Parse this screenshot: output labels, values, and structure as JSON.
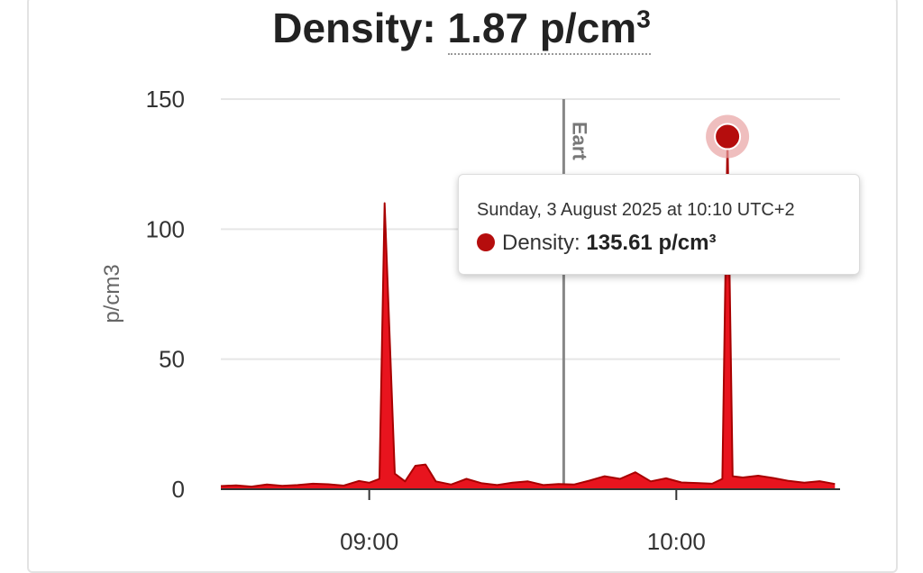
{
  "header": {
    "label": "Density:",
    "value": "1.87 p/cm",
    "superscript": "3"
  },
  "tooltip": {
    "date": "Sunday, 3 August 2025 at 10:10 UTC+2",
    "series_label": "Density:",
    "value": "135.61 p/cm³"
  },
  "plotline_label": "Eart",
  "colors": {
    "series": "#e8141e",
    "series_line": "#a80000",
    "marker": "#b50d0d",
    "plotline": "#888888",
    "grid": "#e6e6e6"
  },
  "chart_data": {
    "type": "area",
    "title": "Density: 1.87 p/cm³",
    "ylabel": "p/cm3",
    "xlabel": "",
    "ylim": [
      0,
      150
    ],
    "xlim": [
      "08:31",
      "10:32"
    ],
    "yticks": [
      0,
      50,
      100,
      150
    ],
    "xticks": [
      "09:00",
      "10:00"
    ],
    "plotline": {
      "time": "09:38",
      "label": "Eart"
    },
    "highlight": {
      "time": "10:10",
      "value": 135.61
    },
    "series": [
      {
        "name": "Density",
        "x": [
          "08:31",
          "08:34",
          "08:37",
          "08:40",
          "08:43",
          "08:46",
          "08:49",
          "08:52",
          "08:55",
          "08:58",
          "09:00",
          "09:02",
          "09:03",
          "09:05",
          "09:07",
          "09:09",
          "09:11",
          "09:13",
          "09:16",
          "09:19",
          "09:22",
          "09:25",
          "09:28",
          "09:31",
          "09:34",
          "09:37",
          "09:40",
          "09:43",
          "09:46",
          "09:49",
          "09:52",
          "09:55",
          "09:58",
          "10:01",
          "10:04",
          "10:07",
          "10:09",
          "10:10",
          "10:11",
          "10:13",
          "10:16",
          "10:19",
          "10:22",
          "10:25",
          "10:28",
          "10:31"
        ],
        "y": [
          1.2,
          1.5,
          1.0,
          1.8,
          1.3,
          1.6,
          2.1,
          1.9,
          1.4,
          3.2,
          2.5,
          4.0,
          110.0,
          6.0,
          3.0,
          9.0,
          9.5,
          3.0,
          1.8,
          4.0,
          2.3,
          1.6,
          2.5,
          3.0,
          1.6,
          2.0,
          1.8,
          3.3,
          5.0,
          4.0,
          6.5,
          3.0,
          4.2,
          2.6,
          2.4,
          2.1,
          4.0,
          135.61,
          5.0,
          4.5,
          5.2,
          4.3,
          3.2,
          2.5,
          3.1,
          2.0
        ]
      }
    ]
  }
}
